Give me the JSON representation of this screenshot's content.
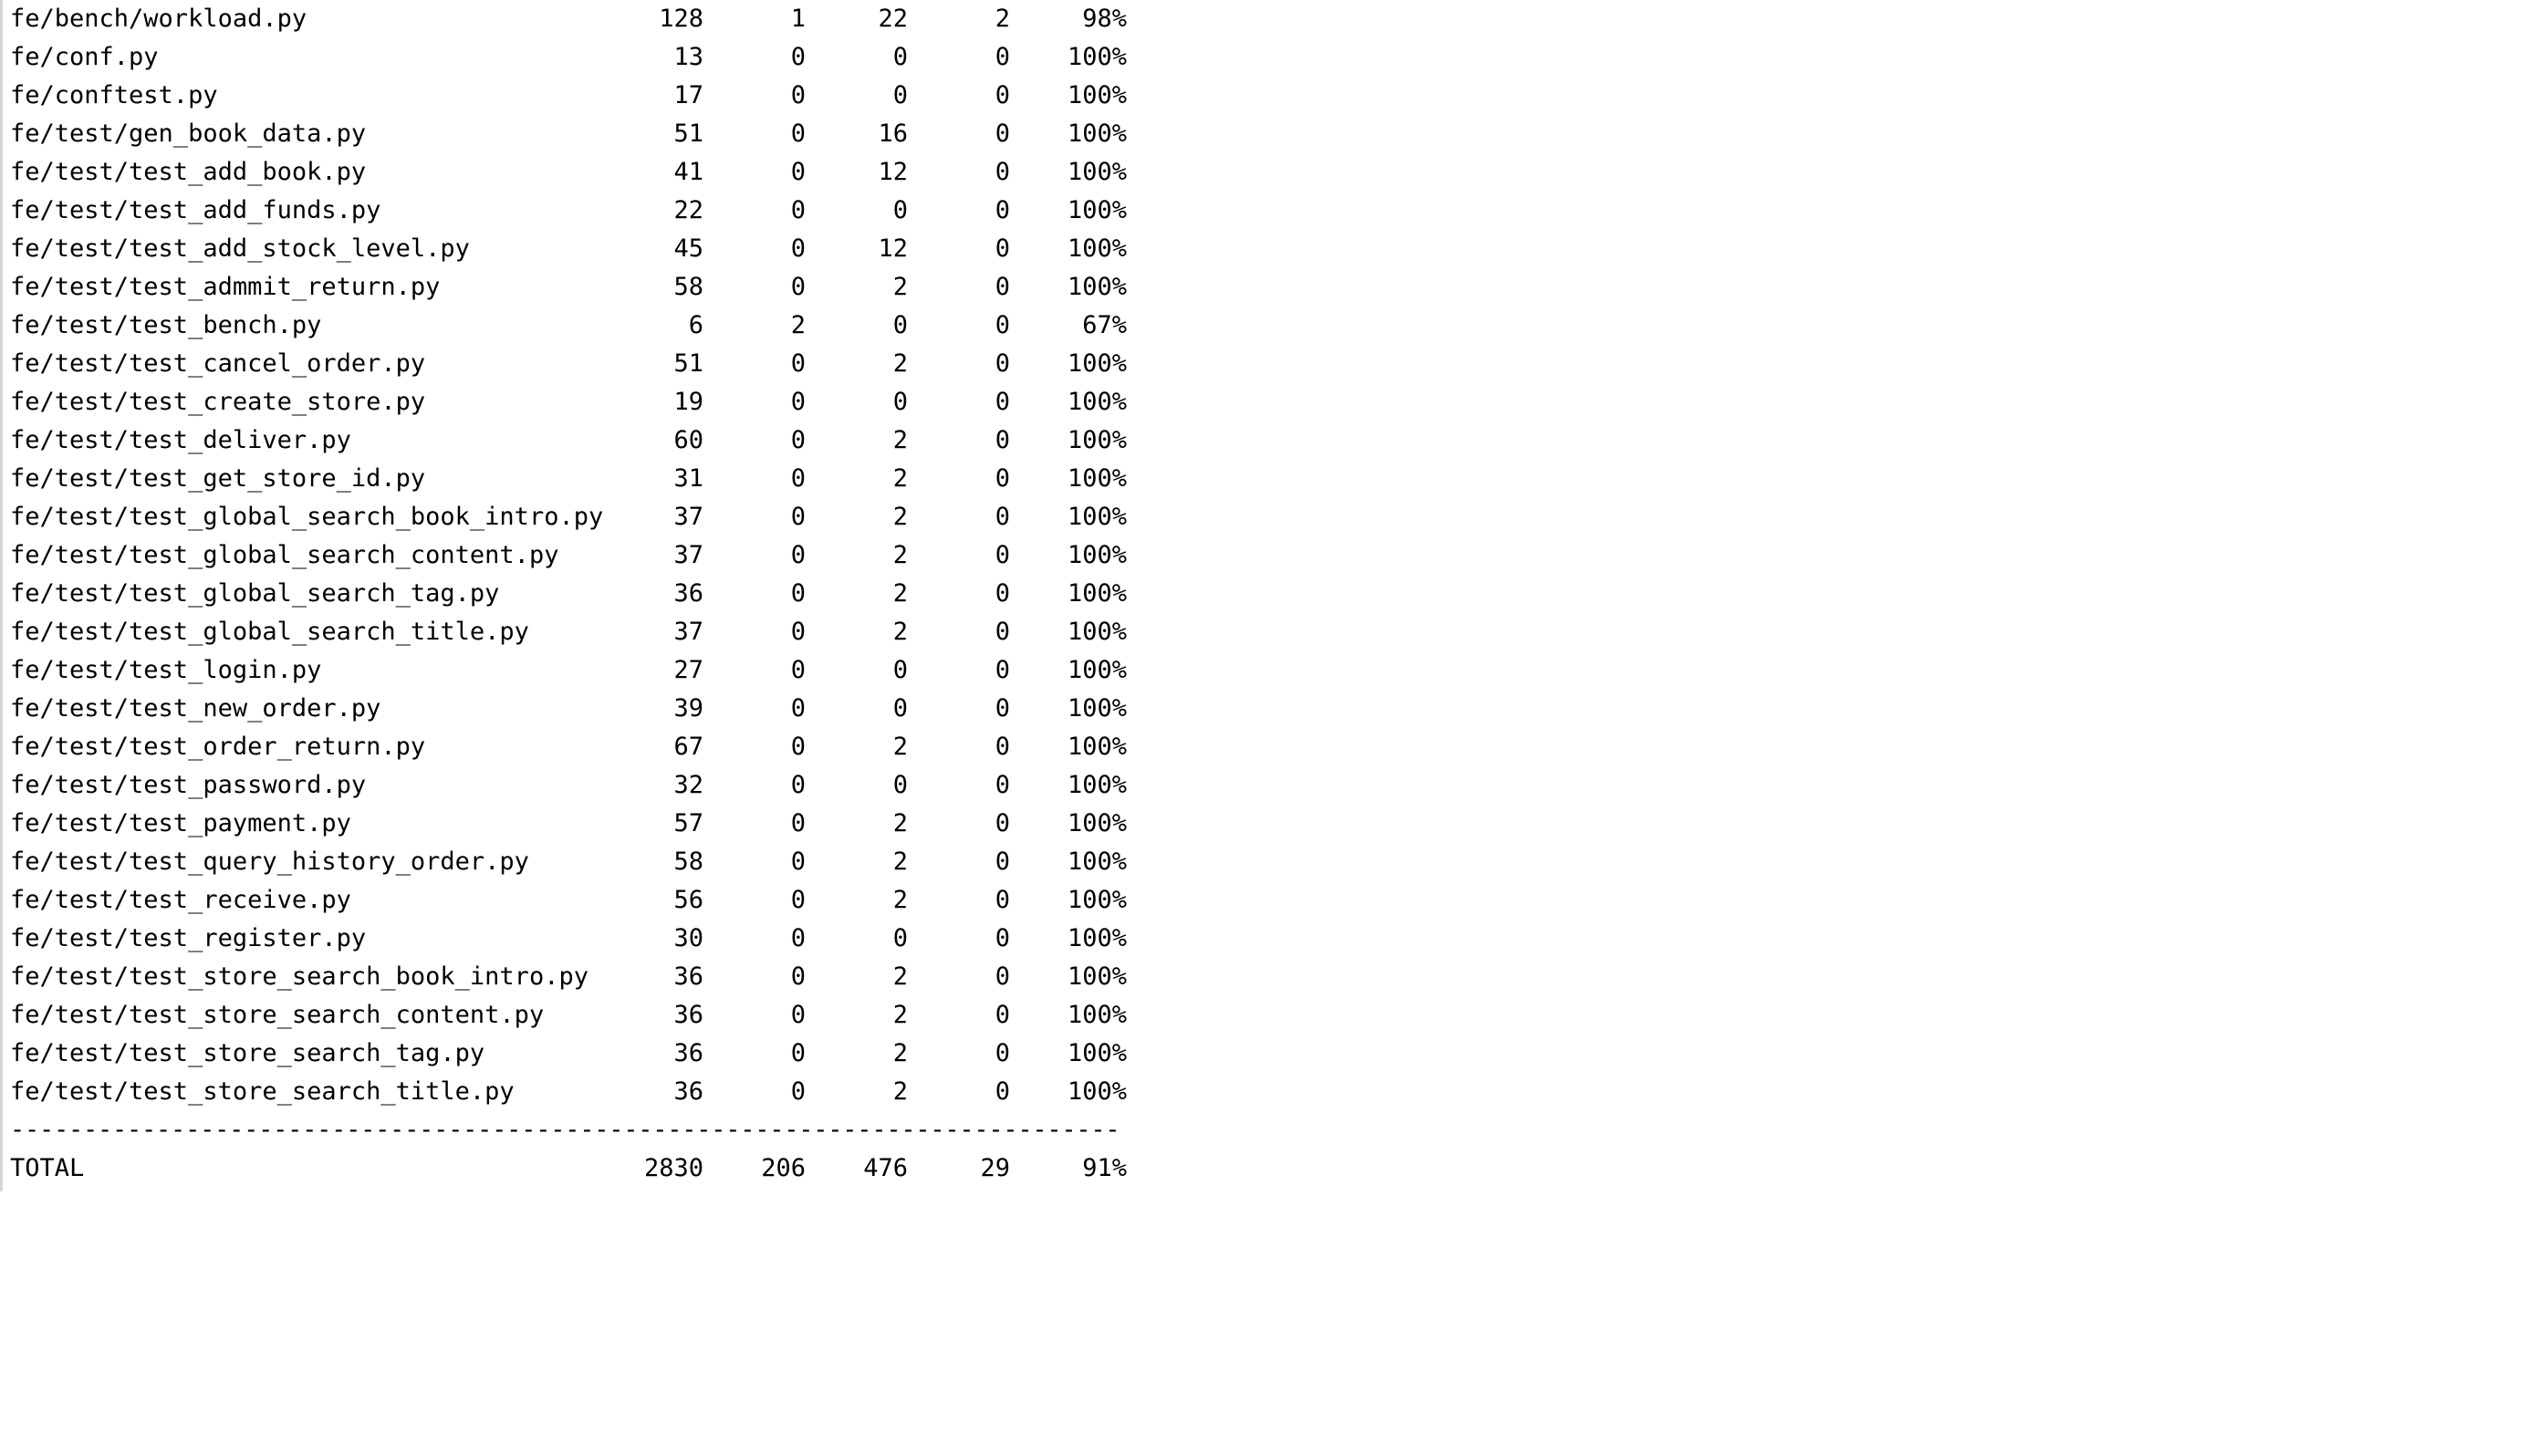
{
  "rows": [
    {
      "name": "fe/bench/workload.py",
      "stmts": "128",
      "miss": "1",
      "branch": "22",
      "brpart": "2",
      "cover": "98%"
    },
    {
      "name": "fe/conf.py",
      "stmts": "13",
      "miss": "0",
      "branch": "0",
      "brpart": "0",
      "cover": "100%"
    },
    {
      "name": "fe/conftest.py",
      "stmts": "17",
      "miss": "0",
      "branch": "0",
      "brpart": "0",
      "cover": "100%"
    },
    {
      "name": "fe/test/gen_book_data.py",
      "stmts": "51",
      "miss": "0",
      "branch": "16",
      "brpart": "0",
      "cover": "100%"
    },
    {
      "name": "fe/test/test_add_book.py",
      "stmts": "41",
      "miss": "0",
      "branch": "12",
      "brpart": "0",
      "cover": "100%"
    },
    {
      "name": "fe/test/test_add_funds.py",
      "stmts": "22",
      "miss": "0",
      "branch": "0",
      "brpart": "0",
      "cover": "100%"
    },
    {
      "name": "fe/test/test_add_stock_level.py",
      "stmts": "45",
      "miss": "0",
      "branch": "12",
      "brpart": "0",
      "cover": "100%"
    },
    {
      "name": "fe/test/test_admmit_return.py",
      "stmts": "58",
      "miss": "0",
      "branch": "2",
      "brpart": "0",
      "cover": "100%"
    },
    {
      "name": "fe/test/test_bench.py",
      "stmts": "6",
      "miss": "2",
      "branch": "0",
      "brpart": "0",
      "cover": "67%"
    },
    {
      "name": "fe/test/test_cancel_order.py",
      "stmts": "51",
      "miss": "0",
      "branch": "2",
      "brpart": "0",
      "cover": "100%"
    },
    {
      "name": "fe/test/test_create_store.py",
      "stmts": "19",
      "miss": "0",
      "branch": "0",
      "brpart": "0",
      "cover": "100%"
    },
    {
      "name": "fe/test/test_deliver.py",
      "stmts": "60",
      "miss": "0",
      "branch": "2",
      "brpart": "0",
      "cover": "100%"
    },
    {
      "name": "fe/test/test_get_store_id.py",
      "stmts": "31",
      "miss": "0",
      "branch": "2",
      "brpart": "0",
      "cover": "100%"
    },
    {
      "name": "fe/test/test_global_search_book_intro.py",
      "stmts": "37",
      "miss": "0",
      "branch": "2",
      "brpart": "0",
      "cover": "100%"
    },
    {
      "name": "fe/test/test_global_search_content.py",
      "stmts": "37",
      "miss": "0",
      "branch": "2",
      "brpart": "0",
      "cover": "100%"
    },
    {
      "name": "fe/test/test_global_search_tag.py",
      "stmts": "36",
      "miss": "0",
      "branch": "2",
      "brpart": "0",
      "cover": "100%"
    },
    {
      "name": "fe/test/test_global_search_title.py",
      "stmts": "37",
      "miss": "0",
      "branch": "2",
      "brpart": "0",
      "cover": "100%"
    },
    {
      "name": "fe/test/test_login.py",
      "stmts": "27",
      "miss": "0",
      "branch": "0",
      "brpart": "0",
      "cover": "100%"
    },
    {
      "name": "fe/test/test_new_order.py",
      "stmts": "39",
      "miss": "0",
      "branch": "0",
      "brpart": "0",
      "cover": "100%"
    },
    {
      "name": "fe/test/test_order_return.py",
      "stmts": "67",
      "miss": "0",
      "branch": "2",
      "brpart": "0",
      "cover": "100%"
    },
    {
      "name": "fe/test/test_password.py",
      "stmts": "32",
      "miss": "0",
      "branch": "0",
      "brpart": "0",
      "cover": "100%"
    },
    {
      "name": "fe/test/test_payment.py",
      "stmts": "57",
      "miss": "0",
      "branch": "2",
      "brpart": "0",
      "cover": "100%"
    },
    {
      "name": "fe/test/test_query_history_order.py",
      "stmts": "58",
      "miss": "0",
      "branch": "2",
      "brpart": "0",
      "cover": "100%"
    },
    {
      "name": "fe/test/test_receive.py",
      "stmts": "56",
      "miss": "0",
      "branch": "2",
      "brpart": "0",
      "cover": "100%"
    },
    {
      "name": "fe/test/test_register.py",
      "stmts": "30",
      "miss": "0",
      "branch": "0",
      "brpart": "0",
      "cover": "100%"
    },
    {
      "name": "fe/test/test_store_search_book_intro.py",
      "stmts": "36",
      "miss": "0",
      "branch": "2",
      "brpart": "0",
      "cover": "100%"
    },
    {
      "name": "fe/test/test_store_search_content.py",
      "stmts": "36",
      "miss": "0",
      "branch": "2",
      "brpart": "0",
      "cover": "100%"
    },
    {
      "name": "fe/test/test_store_search_tag.py",
      "stmts": "36",
      "miss": "0",
      "branch": "2",
      "brpart": "0",
      "cover": "100%"
    },
    {
      "name": "fe/test/test_store_search_title.py",
      "stmts": "36",
      "miss": "0",
      "branch": "2",
      "brpart": "0",
      "cover": "100%"
    }
  ],
  "divider": "------------------------------------------------------------------------------",
  "total": {
    "name": "TOTAL",
    "stmts": "2830",
    "miss": "206",
    "branch": "476",
    "brpart": "29",
    "cover": "91%"
  }
}
